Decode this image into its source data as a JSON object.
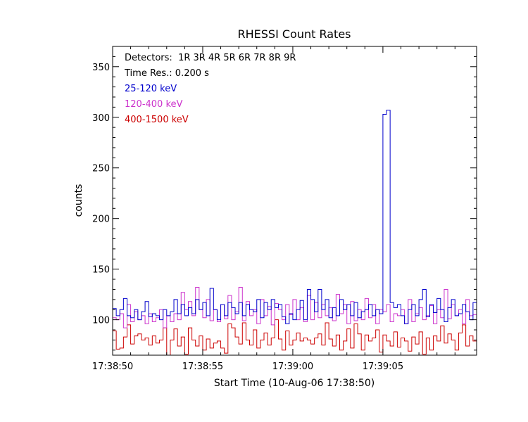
{
  "chart_data": {
    "type": "line",
    "step": true,
    "title": "RHESSI Count Rates",
    "xlabel": "Start Time (10-Aug-06 17:38:50)",
    "ylabel": "counts",
    "xlim": [
      0,
      20.2
    ],
    "ylim": [
      65,
      370
    ],
    "x_ticks": [
      {
        "value": 0,
        "label": "17:38:50"
      },
      {
        "value": 5,
        "label": "17:38:55"
      },
      {
        "value": 10,
        "label": "17:39:00"
      },
      {
        "value": 15,
        "label": "17:39:05"
      }
    ],
    "y_ticks": [
      {
        "value": 100,
        "label": "100"
      },
      {
        "value": 150,
        "label": "150"
      },
      {
        "value": 200,
        "label": "200"
      },
      {
        "value": 250,
        "label": "250"
      },
      {
        "value": 300,
        "label": "300"
      },
      {
        "value": 350,
        "label": "350"
      }
    ],
    "annotations": {
      "detectors": "Detectors:  1R 3R 4R 5R 6R 7R 8R 9R",
      "time_res": "Time Res.: 0.200 s"
    },
    "dt": 0.2,
    "series": [
      {
        "name": "25-120 keV",
        "color": "#0000cc",
        "values": [
          111,
          104,
          110,
          121,
          104,
          102,
          110,
          100,
          108,
          118,
          103,
          106,
          104,
          100,
          110,
          104,
          108,
          120,
          106,
          115,
          104,
          112,
          106,
          120,
          110,
          117,
          104,
          131,
          110,
          100,
          115,
          104,
          117,
          112,
          106,
          117,
          104,
          115,
          110,
          108,
          120,
          102,
          117,
          110,
          120,
          112,
          115,
          103,
          96,
          106,
          100,
          110,
          119,
          100,
          130,
          120,
          108,
          130,
          110,
          120,
          102,
          112,
          104,
          120,
          110,
          115,
          104,
          117,
          102,
          108,
          110,
          115,
          104,
          110,
          106,
          303,
          307,
          117,
          112,
          115,
          104,
          96,
          110,
          115,
          104,
          120,
          130,
          103,
          115,
          107,
          121,
          110,
          98,
          112,
          120,
          104,
          106,
          115,
          108,
          100,
          117,
          104,
          110,
          108,
          115,
          100,
          120,
          110,
          103,
          115,
          104,
          117,
          110,
          100,
          112,
          104,
          119,
          110,
          108,
          104,
          115,
          100,
          110,
          112,
          104,
          120,
          110,
          108,
          102,
          115,
          106,
          112,
          104,
          118,
          110,
          104,
          130,
          120,
          104,
          116,
          100,
          115
        ]
      },
      {
        "name": "120-400 keV",
        "color": "#cc33cc",
        "values": [
          102,
          100,
          106,
          92,
          115,
          98,
          108,
          100,
          104,
          96,
          106,
          98,
          102,
          110,
          92,
          104,
          98,
          106,
          100,
          127,
          110,
          118,
          104,
          132,
          110,
          102,
          120,
          99,
          110,
          98,
          115,
          101,
          124,
          100,
          108,
          132,
          99,
          118,
          104,
          110,
          96,
          120,
          104,
          113,
          95,
          116,
          110,
          100,
          115,
          105,
          120,
          100,
          112,
          98,
          124,
          100,
          117,
          102,
          115,
          104,
          112,
          99,
          125,
          106,
          115,
          96,
          118,
          99,
          110,
          100,
          121,
          102,
          115,
          96,
          110,
          108,
          115,
          98,
          106,
          104,
          110,
          96,
          120,
          98,
          106,
          112,
          100,
          104,
          114,
          96,
          110,
          102,
          130,
          101,
          115,
          104,
          110,
          96,
          120,
          104,
          105,
          112,
          129,
          110,
          97,
          115,
          104,
          122,
          99,
          110,
          102,
          118,
          100,
          110,
          96,
          106,
          98,
          120,
          100,
          104,
          96,
          110,
          98,
          112,
          100,
          104,
          96,
          110,
          100,
          106,
          98,
          110,
          104,
          100,
          98,
          110,
          96,
          104,
          102,
          95,
          100,
          98
        ]
      },
      {
        "name": "400-1500 keV",
        "color": "#cc0000",
        "values": [
          89,
          71,
          72,
          83,
          95,
          76,
          84,
          86,
          80,
          82,
          75,
          84,
          77,
          80,
          92,
          65,
          80,
          91,
          74,
          83,
          66,
          92,
          80,
          74,
          84,
          70,
          81,
          72,
          77,
          79,
          72,
          67,
          96,
          92,
          83,
          76,
          97,
          80,
          75,
          90,
          72,
          80,
          87,
          75,
          82,
          100,
          81,
          70,
          89,
          75,
          80,
          87,
          79,
          82,
          80,
          76,
          82,
          86,
          75,
          97,
          81,
          74,
          85,
          70,
          79,
          91,
          72,
          96,
          86,
          70,
          85,
          79,
          82,
          90,
          68,
          85,
          79,
          74,
          88,
          73,
          82,
          79,
          69,
          83,
          76,
          88,
          66,
          82,
          70,
          84,
          79,
          94,
          77,
          86,
          80,
          70,
          87,
          95,
          74,
          84,
          79,
          87,
          80,
          72,
          84,
          78,
          91,
          70,
          86,
          80,
          75,
          88,
          73,
          80,
          83,
          75,
          82,
          72,
          94,
          77,
          86,
          71,
          85,
          80,
          89,
          76,
          95,
          70,
          81,
          86,
          73,
          104,
          80,
          94,
          74,
          82,
          78,
          86,
          80,
          95,
          73,
          80
        ]
      }
    ]
  }
}
